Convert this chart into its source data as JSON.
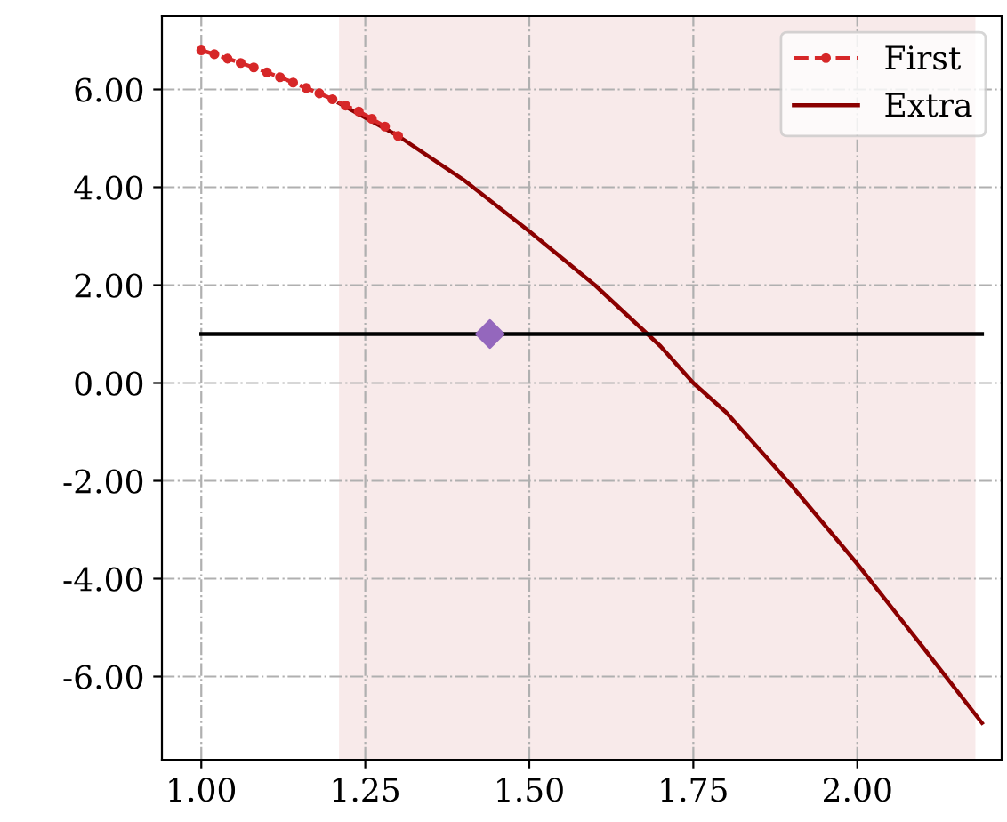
{
  "chart_data": {
    "type": "line",
    "xlim": [
      0.94,
      2.22
    ],
    "ylim": [
      -7.7,
      7.5
    ],
    "xticks": [
      {
        "value": 1.0,
        "label": "1.00"
      },
      {
        "value": 1.25,
        "label": "1.25"
      },
      {
        "value": 1.5,
        "label": "1.50"
      },
      {
        "value": 1.75,
        "label": "1.75"
      },
      {
        "value": 2.0,
        "label": "2.00"
      }
    ],
    "yticks": [
      {
        "value": -6,
        "label": "-6.00"
      },
      {
        "value": -4,
        "label": "-4.00"
      },
      {
        "value": -2,
        "label": "-2.00"
      },
      {
        "value": 0,
        "label": "0.00"
      },
      {
        "value": 2,
        "label": "2.00"
      },
      {
        "value": 4,
        "label": "4.00"
      },
      {
        "value": 6,
        "label": "6.00"
      }
    ],
    "grid": true,
    "legend": "top right",
    "bands": [
      {
        "axis": "x",
        "from": 1.21,
        "to": 2.18,
        "color": "#f8eaea"
      }
    ],
    "series": [
      {
        "name": "First",
        "color": "#d62728",
        "marker": "circle",
        "line_style": "dashed",
        "x": [
          1.0,
          1.02,
          1.04,
          1.06,
          1.08,
          1.1,
          1.12,
          1.14,
          1.16,
          1.18,
          1.2,
          1.22,
          1.24,
          1.26,
          1.28,
          1.3
        ],
        "values": [
          6.8,
          6.72,
          6.63,
          6.54,
          6.45,
          6.35,
          6.25,
          6.14,
          6.03,
          5.92,
          5.8,
          5.67,
          5.55,
          5.4,
          5.24,
          5.05
        ]
      },
      {
        "name": "Extra",
        "color": "#8b0000",
        "marker": "none",
        "line_style": "solid",
        "x": [
          1.21,
          1.3,
          1.4,
          1.5,
          1.6,
          1.7,
          1.75,
          1.8,
          1.9,
          2.0,
          2.1,
          2.19
        ],
        "values": [
          5.72,
          5.05,
          4.15,
          3.1,
          2.0,
          0.75,
          0.0,
          -0.6,
          -2.1,
          -3.7,
          -5.4,
          -6.95
        ]
      },
      {
        "color": "#000000",
        "marker": "none",
        "line_style": "solid",
        "x": [
          1.0,
          2.19
        ],
        "values": [
          1.0,
          1.0
        ]
      },
      {
        "type": "scatter",
        "color": "#9467bd",
        "marker": "diamond",
        "x": [
          1.44
        ],
        "values": [
          1.0
        ]
      }
    ]
  }
}
